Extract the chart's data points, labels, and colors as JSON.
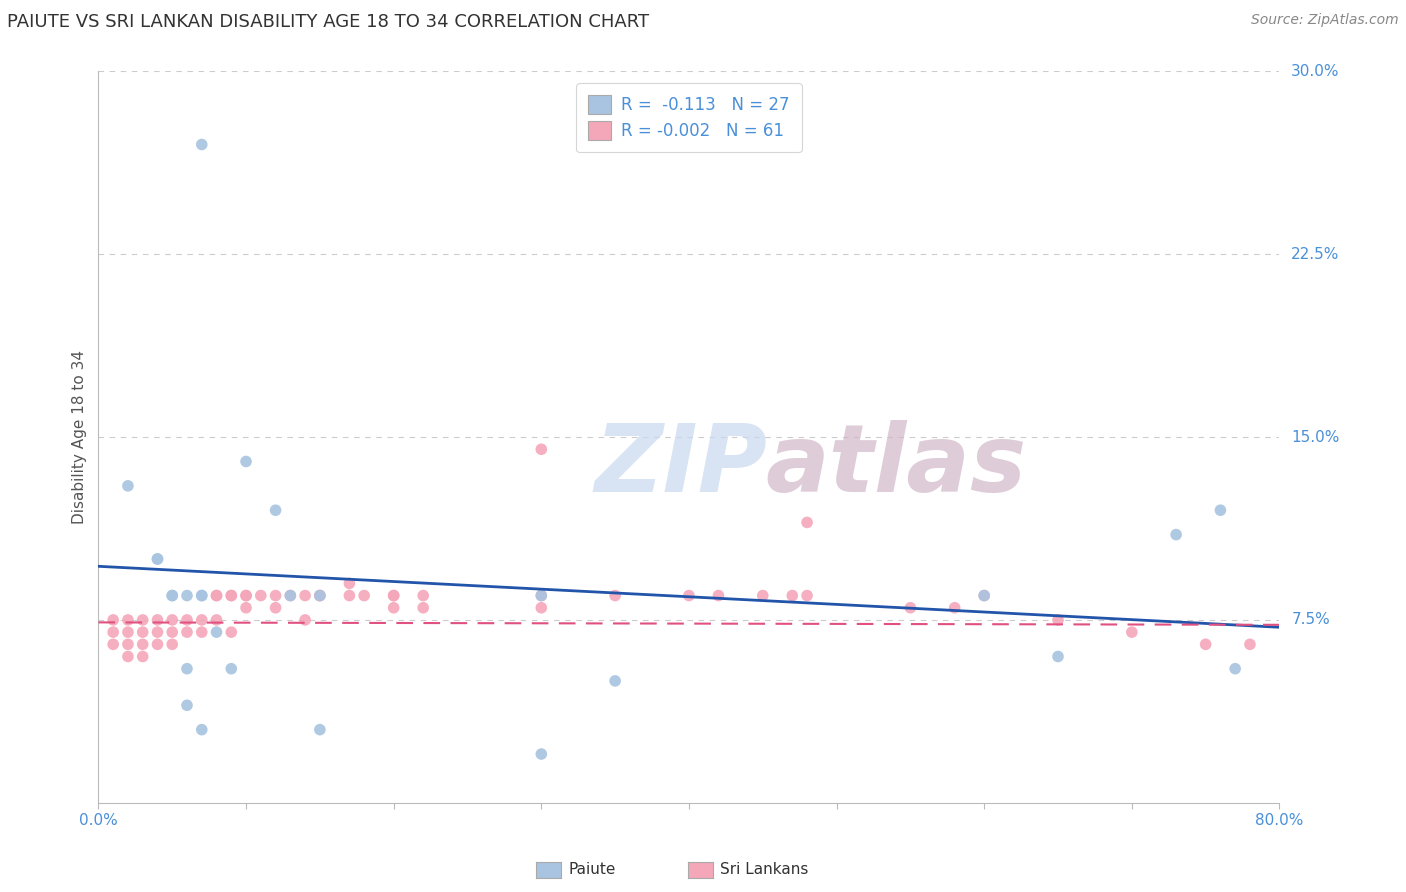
{
  "title": "PAIUTE VS SRI LANKAN DISABILITY AGE 18 TO 34 CORRELATION CHART",
  "source_text": "Source: ZipAtlas.com",
  "ylabel": "Disability Age 18 to 34",
  "xlim": [
    0.0,
    0.8
  ],
  "ylim": [
    0.0,
    0.3
  ],
  "yticks": [
    0.0,
    0.075,
    0.15,
    0.225,
    0.3
  ],
  "yticklabels": [
    "",
    "7.5%",
    "15.0%",
    "22.5%",
    "30.0%"
  ],
  "grid_color": "#cccccc",
  "background_color": "#ffffff",
  "paiute_color": "#a8c4e0",
  "srilankan_color": "#f4a7b9",
  "paiute_line_color": "#2255aa",
  "srilankan_line_color": "#e05080",
  "tick_color": "#4a90d9",
  "label_color": "#555555",
  "paiute_points_x": [
    0.02,
    0.04,
    0.04,
    0.07,
    0.05,
    0.05,
    0.06,
    0.06,
    0.06,
    0.07,
    0.07,
    0.07,
    0.08,
    0.09,
    0.1,
    0.12,
    0.13,
    0.15,
    0.15,
    0.3,
    0.3,
    0.35,
    0.6,
    0.65,
    0.73,
    0.76,
    0.77
  ],
  "paiute_points_y": [
    0.13,
    0.1,
    0.1,
    0.27,
    0.085,
    0.085,
    0.085,
    0.055,
    0.04,
    0.085,
    0.085,
    0.03,
    0.07,
    0.055,
    0.14,
    0.12,
    0.085,
    0.085,
    0.03,
    0.085,
    0.02,
    0.05,
    0.085,
    0.06,
    0.11,
    0.12,
    0.055
  ],
  "srilankan_points_x": [
    0.01,
    0.01,
    0.01,
    0.02,
    0.02,
    0.02,
    0.02,
    0.03,
    0.03,
    0.03,
    0.03,
    0.04,
    0.04,
    0.04,
    0.05,
    0.05,
    0.05,
    0.06,
    0.06,
    0.07,
    0.07,
    0.08,
    0.08,
    0.08,
    0.09,
    0.09,
    0.09,
    0.1,
    0.1,
    0.1,
    0.11,
    0.12,
    0.12,
    0.13,
    0.14,
    0.14,
    0.15,
    0.15,
    0.17,
    0.17,
    0.18,
    0.2,
    0.2,
    0.2,
    0.22,
    0.22,
    0.3,
    0.3,
    0.35,
    0.4,
    0.42,
    0.45,
    0.47,
    0.48,
    0.55,
    0.58,
    0.6,
    0.65,
    0.7,
    0.75,
    0.78,
    0.3,
    0.48
  ],
  "srilankan_points_y": [
    0.075,
    0.07,
    0.065,
    0.075,
    0.07,
    0.065,
    0.06,
    0.075,
    0.07,
    0.065,
    0.06,
    0.075,
    0.07,
    0.065,
    0.075,
    0.07,
    0.065,
    0.075,
    0.07,
    0.075,
    0.07,
    0.085,
    0.085,
    0.075,
    0.085,
    0.085,
    0.07,
    0.085,
    0.085,
    0.08,
    0.085,
    0.085,
    0.08,
    0.085,
    0.085,
    0.075,
    0.085,
    0.085,
    0.09,
    0.085,
    0.085,
    0.085,
    0.085,
    0.08,
    0.085,
    0.08,
    0.085,
    0.08,
    0.085,
    0.085,
    0.085,
    0.085,
    0.085,
    0.085,
    0.08,
    0.08,
    0.085,
    0.075,
    0.07,
    0.065,
    0.065,
    0.145,
    0.115
  ],
  "paiute_line_x0": 0.0,
  "paiute_line_y0": 0.097,
  "paiute_line_x1": 0.8,
  "paiute_line_y1": 0.072,
  "sri_line_x0": 0.0,
  "sri_line_y0": 0.074,
  "sri_line_x1": 0.8,
  "sri_line_y1": 0.073,
  "watermark_zip_color": "#c8d8f0",
  "watermark_atlas_color": "#d0b8c8"
}
